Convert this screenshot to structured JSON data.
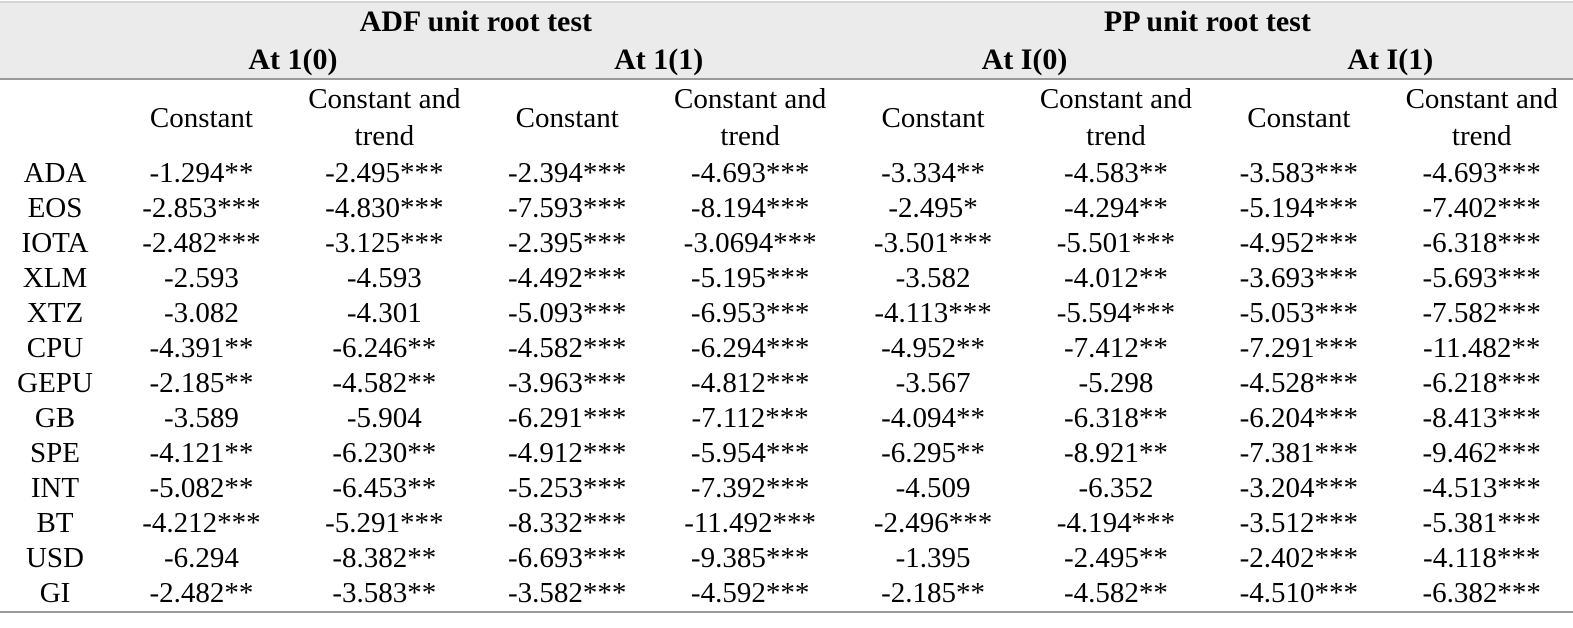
{
  "table": {
    "groups": [
      {
        "label": "ADF unit root test",
        "subgroups": [
          "At 1(0)",
          "At 1(1)"
        ]
      },
      {
        "label": "PP unit root test",
        "subgroups": [
          "At I(0)",
          "At I(1)"
        ]
      }
    ],
    "column_headers": [
      "Constant",
      "Constant and trend",
      "Constant",
      "Constant and trend",
      "Constant",
      "Constant and trend",
      "Constant",
      "Constant and trend"
    ],
    "rows": [
      {
        "label": "ADA",
        "values": [
          "-1.294**",
          "-2.495***",
          "-2.394***",
          "-4.693***",
          "-3.334**",
          "-4.583**",
          "-3.583***",
          "-4.693***"
        ]
      },
      {
        "label": "EOS",
        "values": [
          "-2.853***",
          "-4.830***",
          "-7.593***",
          "-8.194***",
          "-2.495*",
          "-4.294**",
          "-5.194***",
          "-7.402***"
        ]
      },
      {
        "label": "IOTA",
        "values": [
          "-2.482***",
          "-3.125***",
          "-2.395***",
          "-3.0694***",
          "-3.501***",
          "-5.501***",
          "-4.952***",
          "-6.318***"
        ]
      },
      {
        "label": "XLM",
        "values": [
          "-2.593",
          "-4.593",
          "-4.492***",
          "-5.195***",
          "-3.582",
          "-4.012**",
          "-3.693***",
          "-5.693***"
        ]
      },
      {
        "label": "XTZ",
        "values": [
          "-3.082",
          "-4.301",
          "-5.093***",
          "-6.953***",
          "-4.113***",
          "-5.594***",
          "-5.053***",
          "-7.582***"
        ]
      },
      {
        "label": "CPU",
        "values": [
          "-4.391**",
          "-6.246**",
          "-4.582***",
          "-6.294***",
          "-4.952**",
          "-7.412**",
          "-7.291***",
          "-11.482**"
        ]
      },
      {
        "label": "GEPU",
        "values": [
          "-2.185**",
          "-4.582**",
          "-3.963***",
          "-4.812***",
          "-3.567",
          "-5.298",
          "-4.528***",
          "-6.218***"
        ]
      },
      {
        "label": "GB",
        "values": [
          "-3.589",
          "-5.904",
          "-6.291***",
          "-7.112***",
          "-4.094**",
          "-6.318**",
          "-6.204***",
          "-8.413***"
        ]
      },
      {
        "label": "SPE",
        "values": [
          "-4.121**",
          "-6.230**",
          "-4.912***",
          "-5.954***",
          "-6.295**",
          "-8.921**",
          "-7.381***",
          "-9.462***"
        ]
      },
      {
        "label": "INT",
        "values": [
          "-5.082**",
          "-6.453**",
          "-5.253***",
          "-7.392***",
          "-4.509",
          "-6.352",
          "-3.204***",
          "-4.513***"
        ]
      },
      {
        "label": "BT",
        "values": [
          "-4.212***",
          "-5.291***",
          "-8.332***",
          "-11.492***",
          "-2.496***",
          "-4.194***",
          "-3.512***",
          "-5.381***"
        ]
      },
      {
        "label": "USD",
        "values": [
          "-6.294",
          "-8.382**",
          "-6.693***",
          "-9.385***",
          "-1.395",
          "-2.495**",
          "-2.402***",
          "-4.118***"
        ]
      },
      {
        "label": "GI",
        "values": [
          "-2.482**",
          "-3.583**",
          "-3.582***",
          "-4.592***",
          "-2.185**",
          "-4.582**",
          "-4.510***",
          "-6.382***"
        ]
      }
    ]
  },
  "colors": {
    "header_band": "#ebebeb",
    "rule_line": "#9a9a9a",
    "text": "#000000"
  }
}
